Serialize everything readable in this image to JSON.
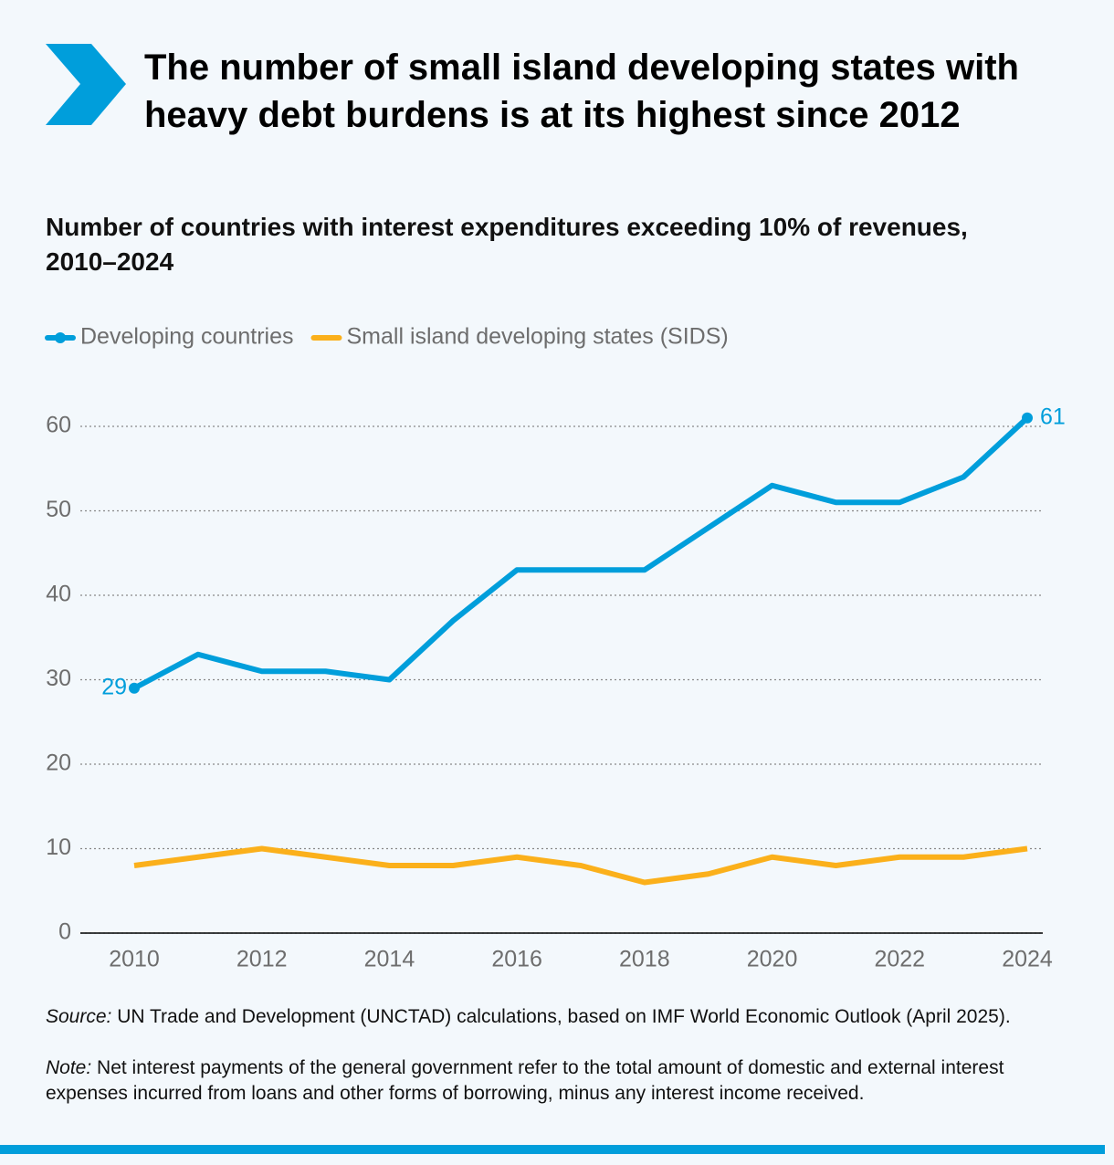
{
  "title": "The number of small island developing states with heavy debt burdens is at its highest since 2012",
  "chart_data": {
    "type": "line",
    "title": "Number of countries with interest expenditures exceeding 10% of revenues, 2010–2024",
    "x": [
      2010,
      2011,
      2012,
      2013,
      2014,
      2015,
      2016,
      2017,
      2018,
      2019,
      2020,
      2021,
      2022,
      2023,
      2024
    ],
    "series": [
      {
        "name": "Developing countries",
        "color": "#009edb",
        "values": [
          29,
          33,
          31,
          31,
          30,
          37,
          43,
          43,
          43,
          48,
          53,
          51,
          51,
          54,
          61
        ]
      },
      {
        "name": "Small island developing states (SIDS)",
        "color": "#fbb01b",
        "values": [
          8,
          9,
          10,
          9,
          8,
          8,
          9,
          8,
          6,
          7,
          9,
          8,
          9,
          9,
          10
        ]
      }
    ],
    "xlim": [
      2010,
      2024
    ],
    "xticks": [
      2010,
      2012,
      2014,
      2016,
      2018,
      2020,
      2022,
      2024
    ],
    "ylim": [
      0,
      60
    ],
    "yticks": [
      0,
      10,
      20,
      30,
      40,
      50,
      60
    ],
    "grid": true,
    "legend": "top-left"
  },
  "source_label": "Source:",
  "source": "UN Trade and Development (UNCTAD) calculations, based on IMF World Economic Outlook (April 2025).",
  "note_label": "Note:",
  "note": "Net interest payments of the general government refer to the total amount of domestic and external interest expenses incurred from loans and other forms of borrowing, minus any interest income received."
}
